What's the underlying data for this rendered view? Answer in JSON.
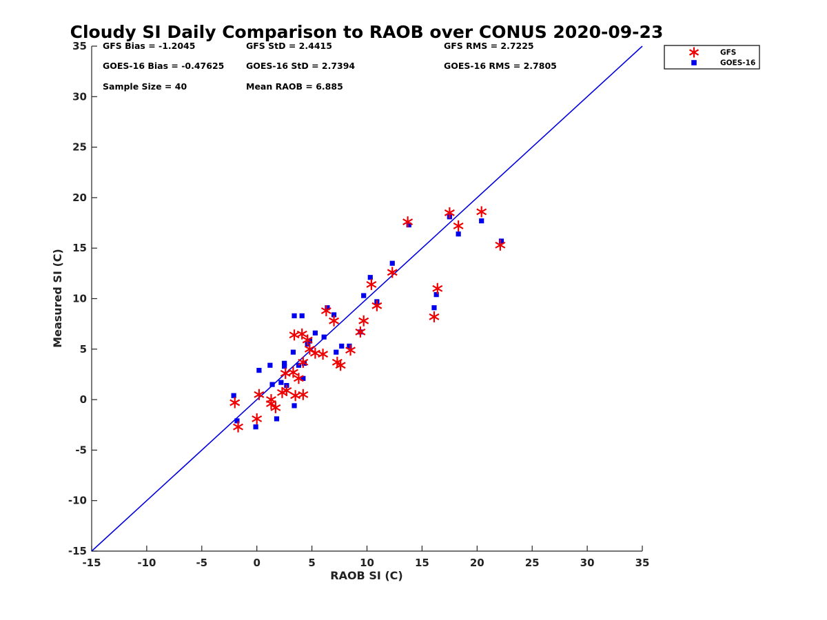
{
  "chart_data": {
    "type": "scatter",
    "title": "Cloudy SI Daily Comparison to RAOB over CONUS 2020-09-23",
    "xlabel": "RAOB SI (C)",
    "ylabel": "Measured SI (C)",
    "xlim": [
      -15,
      35
    ],
    "ylim": [
      -15,
      35
    ],
    "xticks": [
      -15,
      -10,
      -5,
      0,
      5,
      10,
      15,
      20,
      25,
      30,
      35
    ],
    "yticks": [
      -15,
      -10,
      -5,
      0,
      5,
      10,
      15,
      20,
      25,
      30,
      35
    ],
    "grid": false,
    "legend_position": "outside-top-right",
    "reference_line": {
      "from": [
        -15,
        -15
      ],
      "to": [
        35,
        35
      ],
      "color": "#0000dd"
    },
    "stats": [
      {
        "text": "GFS Bias = -1.2045",
        "row": 0,
        "col": 0
      },
      {
        "text": "GFS StD = 2.4415",
        "row": 0,
        "col": 1
      },
      {
        "text": "GFS RMS = 2.7225",
        "row": 0,
        "col": 2
      },
      {
        "text": "GOES-16 Bias = -0.47625",
        "row": 1,
        "col": 0
      },
      {
        "text": "GOES-16 StD = 2.7394",
        "row": 1,
        "col": 1
      },
      {
        "text": "GOES-16 RMS = 2.7805",
        "row": 1,
        "col": 2
      },
      {
        "text": "Sample Size = 40",
        "row": 2,
        "col": 0
      },
      {
        "text": "Mean RAOB = 6.885",
        "row": 2,
        "col": 1
      }
    ],
    "series": [
      {
        "name": "GFS",
        "marker": "asterisk",
        "color": "#ee0000",
        "points": [
          [
            -2.0,
            -0.3
          ],
          [
            -1.7,
            -2.7
          ],
          [
            0.0,
            -1.9
          ],
          [
            0.2,
            0.5
          ],
          [
            1.3,
            0.0
          ],
          [
            1.3,
            -0.4
          ],
          [
            1.7,
            -0.8
          ],
          [
            2.3,
            0.7
          ],
          [
            2.6,
            2.6
          ],
          [
            2.7,
            0.9
          ],
          [
            3.3,
            2.7
          ],
          [
            3.4,
            6.4
          ],
          [
            3.5,
            0.4
          ],
          [
            3.8,
            2.1
          ],
          [
            4.1,
            6.5
          ],
          [
            4.2,
            0.5
          ],
          [
            4.2,
            3.7
          ],
          [
            4.6,
            5.9
          ],
          [
            4.8,
            5.0
          ],
          [
            5.3,
            4.6
          ],
          [
            6.0,
            4.5
          ],
          [
            6.3,
            8.8
          ],
          [
            7.0,
            7.8
          ],
          [
            7.3,
            3.7
          ],
          [
            7.6,
            3.4
          ],
          [
            8.5,
            4.9
          ],
          [
            9.4,
            6.7
          ],
          [
            9.7,
            7.8
          ],
          [
            10.4,
            11.4
          ],
          [
            10.9,
            9.3
          ],
          [
            12.3,
            12.6
          ],
          [
            13.7,
            17.6
          ],
          [
            16.1,
            8.2
          ],
          [
            16.4,
            11.0
          ],
          [
            17.5,
            18.5
          ],
          [
            18.3,
            17.2
          ],
          [
            20.4,
            18.6
          ],
          [
            22.1,
            15.3
          ]
        ]
      },
      {
        "name": "GOES-16",
        "marker": "square",
        "color": "#0000ee",
        "points": [
          [
            -2.1,
            0.4
          ],
          [
            -1.8,
            -2.1
          ],
          [
            -0.1,
            -2.7
          ],
          [
            0.2,
            2.9
          ],
          [
            1.2,
            3.4
          ],
          [
            1.4,
            1.5
          ],
          [
            1.8,
            -1.9
          ],
          [
            2.2,
            1.7
          ],
          [
            2.5,
            3.3
          ],
          [
            2.5,
            3.6
          ],
          [
            2.7,
            1.4
          ],
          [
            3.3,
            4.7
          ],
          [
            3.4,
            8.3
          ],
          [
            3.4,
            -0.6
          ],
          [
            3.8,
            3.4
          ],
          [
            4.1,
            8.3
          ],
          [
            4.2,
            2.1
          ],
          [
            4.3,
            3.6
          ],
          [
            4.6,
            5.5
          ],
          [
            4.8,
            5.8
          ],
          [
            5.3,
            6.6
          ],
          [
            6.1,
            6.2
          ],
          [
            6.4,
            9.1
          ],
          [
            7.0,
            8.4
          ],
          [
            7.2,
            4.7
          ],
          [
            7.7,
            5.3
          ],
          [
            8.4,
            5.3
          ],
          [
            9.4,
            6.7
          ],
          [
            9.7,
            10.3
          ],
          [
            10.3,
            12.1
          ],
          [
            10.9,
            9.7
          ],
          [
            12.3,
            13.5
          ],
          [
            13.8,
            17.3
          ],
          [
            16.1,
            9.1
          ],
          [
            16.3,
            10.4
          ],
          [
            17.5,
            18.1
          ],
          [
            18.3,
            16.4
          ],
          [
            20.4,
            17.7
          ],
          [
            22.2,
            15.7
          ]
        ]
      }
    ]
  }
}
